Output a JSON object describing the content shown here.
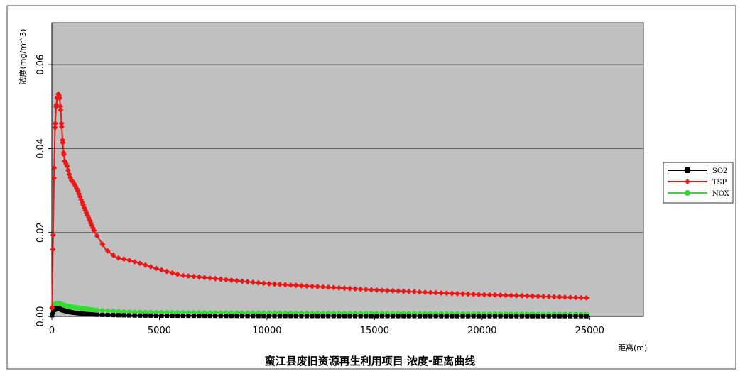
{
  "chart_data": {
    "type": "line",
    "title": "蛮江县废旧资源再生利用项目 浓度-距离曲线",
    "xlabel": "距离(m)",
    "ylabel": "浓度(mg/m^3)",
    "xlim": [
      0,
      27500
    ],
    "ylim": [
      0,
      0.07
    ],
    "xticks": [
      0,
      5000,
      10000,
      15000,
      20000,
      25000
    ],
    "yticks": [
      0.0,
      0.02,
      0.04,
      0.06
    ],
    "ytick_labels": [
      "0.00",
      "0.02",
      "0.04",
      "0.06"
    ],
    "grid": "horizontal",
    "legend_position": "right",
    "series": [
      {
        "name": "SO2",
        "color": "#000000",
        "x": [
          10,
          100,
          200,
          300,
          400,
          500,
          700,
          1000,
          1500,
          2000,
          3000,
          4000,
          6000,
          10000,
          15000,
          20000,
          25000
        ],
        "y": [
          0.0003,
          0.0015,
          0.0018,
          0.0019,
          0.0017,
          0.0015,
          0.0012,
          0.0009,
          0.0006,
          0.0004,
          0.0003,
          0.0002,
          0.00015,
          0.0001,
          8e-05,
          6e-05,
          5e-05
        ]
      },
      {
        "name": "TSP",
        "color": "#e81818",
        "x": [
          10,
          50,
          100,
          150,
          200,
          250,
          300,
          350,
          400,
          450,
          500,
          550,
          600,
          700,
          800,
          900,
          1000,
          1200,
          1500,
          2000,
          2500,
          3000,
          3500,
          4000,
          5000,
          6000,
          8000,
          10000,
          12000,
          15000,
          18000,
          20000,
          22000,
          25000
        ],
        "y": [
          0.002,
          0.016,
          0.033,
          0.045,
          0.05,
          0.052,
          0.053,
          0.0525,
          0.05,
          0.046,
          0.042,
          0.039,
          0.037,
          0.036,
          0.034,
          0.0325,
          0.032,
          0.03,
          0.026,
          0.02,
          0.016,
          0.014,
          0.0135,
          0.0128,
          0.0112,
          0.0098,
          0.0088,
          0.0078,
          0.0072,
          0.0063,
          0.0056,
          0.0052,
          0.0049,
          0.0044
        ]
      },
      {
        "name": "NOX",
        "color": "#33dd33",
        "x": [
          10,
          100,
          200,
          300,
          400,
          500,
          700,
          1000,
          1500,
          2000,
          3000,
          4000,
          6000,
          10000,
          15000,
          20000,
          25000
        ],
        "y": [
          0.0005,
          0.0028,
          0.0031,
          0.0032,
          0.003,
          0.0028,
          0.0025,
          0.0022,
          0.0018,
          0.0015,
          0.0012,
          0.001,
          0.0009,
          0.0008,
          0.0007,
          0.0006,
          0.0005
        ]
      }
    ]
  },
  "colors": {
    "plot_background": "#c0c0c0",
    "grid": "#555555"
  }
}
